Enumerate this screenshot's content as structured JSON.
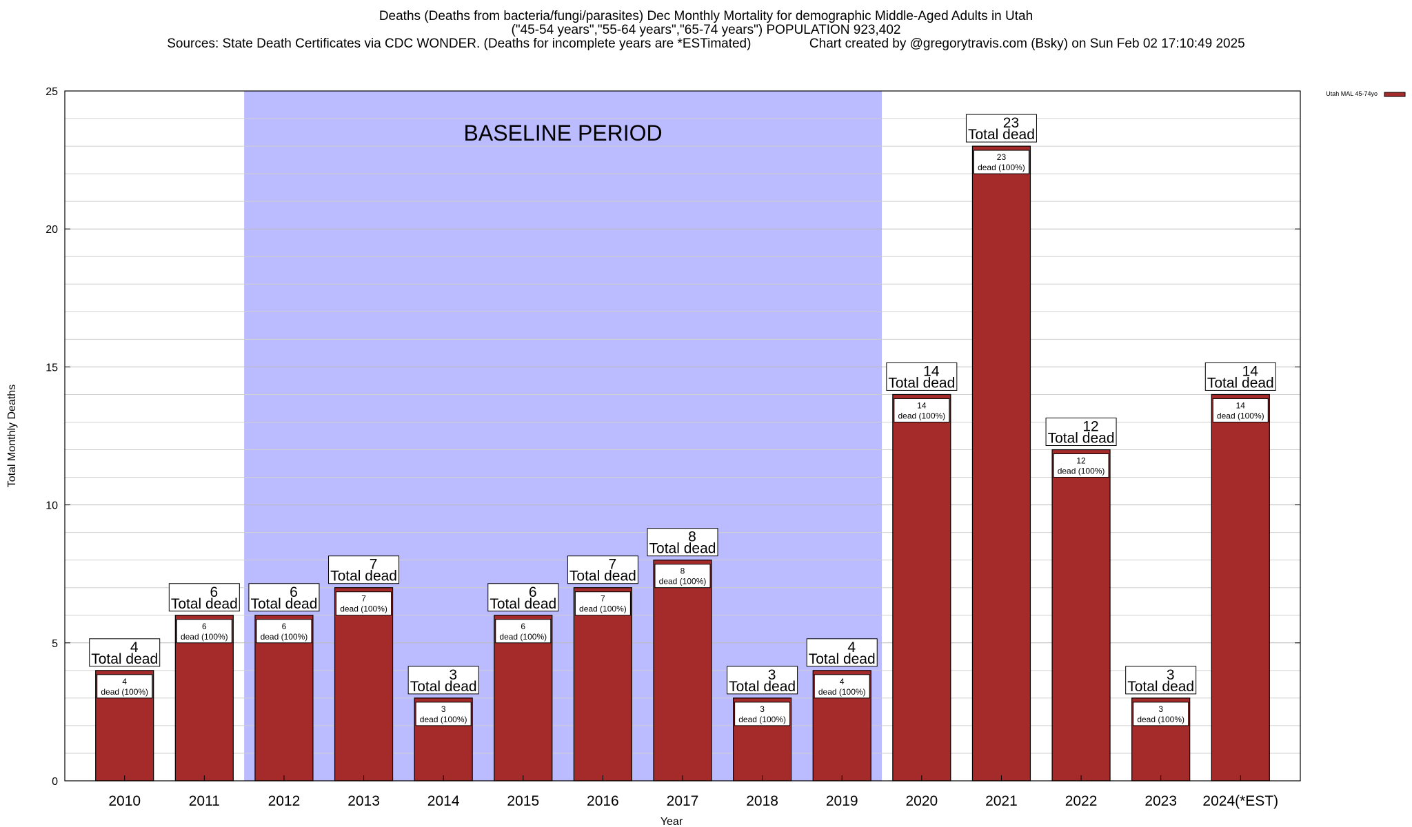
{
  "chart_data": {
    "type": "bar",
    "title_lines": [
      "Deaths (Deaths from bacteria/fungi/parasites) Dec Monthly Mortality for demographic Middle-Aged Adults in Utah",
      "(\"45-54 years\",\"55-64 years\",\"65-74 years\") POPULATION 923,402",
      "Sources: State Death Certificates via CDC WONDER. (Deaths for incomplete years are *ESTimated)                Chart created by @gregorytravis.com (Bsky) on Sun Feb 02 17:10:49 2025"
    ],
    "xlabel": "Year",
    "ylabel": "Total Monthly Deaths",
    "ylim": [
      0,
      25
    ],
    "yticks": [
      0,
      5,
      10,
      15,
      20,
      25
    ],
    "grid": true,
    "legend_position": "top-right",
    "categories": [
      "2010",
      "2011",
      "2012",
      "2013",
      "2014",
      "2015",
      "2016",
      "2017",
      "2018",
      "2019",
      "2020",
      "2021",
      "2022",
      "2023",
      "2024(*EST)"
    ],
    "series": [
      {
        "name": "Utah MAL 45-74yo",
        "color": "#a52a2a",
        "values": [
          4,
          6,
          6,
          7,
          3,
          6,
          7,
          8,
          3,
          4,
          14,
          23,
          12,
          3,
          14
        ]
      }
    ],
    "bar_label_total": "Total dead",
    "bar_label_inner": "dead (100%)",
    "baseline_period": {
      "label": "BASELINE PERIOD",
      "start": "2012",
      "end": "2019",
      "color": "#bbbbff"
    }
  }
}
